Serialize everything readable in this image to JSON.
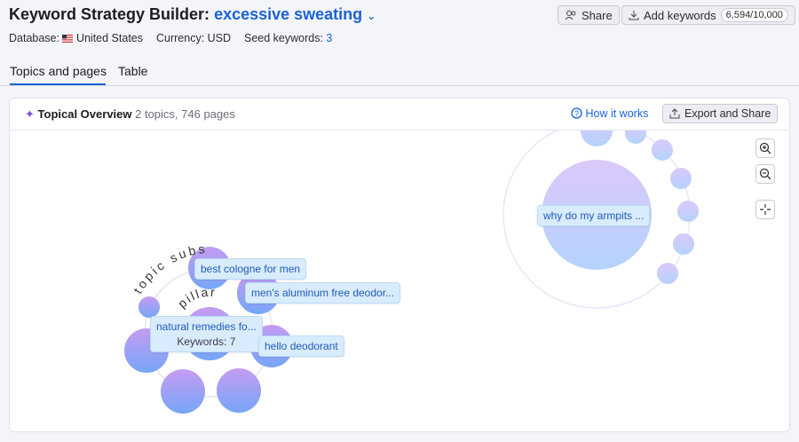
{
  "header": {
    "title": "Keyword Strategy Builder:",
    "project": "excessive sweating",
    "share": "Share",
    "add_keywords": "Add keywords",
    "quota": "6,594/10,000"
  },
  "meta": {
    "database_label": "Database:",
    "database": "United States",
    "currency": "Currency: USD",
    "seed_label": "Seed keywords:",
    "seed_count": "3"
  },
  "tabs": [
    "Topics and pages",
    "Table"
  ],
  "overview": {
    "title": "Topical Overview",
    "summary": "2 topics, 746 pages",
    "how_it_works": "How it works",
    "export": "Export and Share"
  },
  "graph": {
    "ring_labels": [
      "topic subs",
      "pillar"
    ],
    "labels": [
      "best cologne for men",
      "men's aluminum free deodor...",
      "natural remedies fo...",
      "hello deodorant",
      "why do my armpits ..."
    ],
    "keywords": "Keywords: 7"
  }
}
